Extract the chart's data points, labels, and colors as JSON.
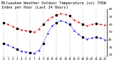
{
  "title": "Milwaukee Weather Outdoor Temperature (vs) THSW Index per Hour (Last 24 Hours)",
  "title_fontsize": 3.8,
  "hours": [
    0,
    1,
    2,
    3,
    4,
    5,
    6,
    7,
    8,
    9,
    10,
    11,
    12,
    13,
    14,
    15,
    16,
    17,
    18,
    19,
    20,
    21,
    22,
    23
  ],
  "temp": [
    62,
    60,
    57,
    55,
    53,
    52,
    51,
    50,
    54,
    60,
    66,
    70,
    72,
    74,
    73,
    71,
    66,
    63,
    60,
    58,
    60,
    61,
    60,
    59
  ],
  "thsw": [
    35,
    33,
    30,
    27,
    25,
    24,
    23,
    22,
    26,
    35,
    48,
    58,
    62,
    65,
    63,
    60,
    52,
    47,
    43,
    41,
    42,
    43,
    42,
    40
  ],
  "temp_color": "#cc0000",
  "thsw_color": "#0000cc",
  "black_color": "#000000",
  "grid_color": "#bbbbbb",
  "background_color": "#ffffff",
  "ylim_min": 18,
  "ylim_max": 80,
  "ytick_vals": [
    20,
    30,
    40,
    50,
    60,
    70,
    80
  ],
  "ytick_labels": [
    "20",
    "30",
    "40",
    "50",
    "60",
    "70",
    "80"
  ],
  "ylabel_fontsize": 3.2,
  "xlabel_fontsize": 2.8,
  "vgrid_positions": [
    0,
    3,
    6,
    9,
    12,
    15,
    18,
    21,
    23
  ]
}
